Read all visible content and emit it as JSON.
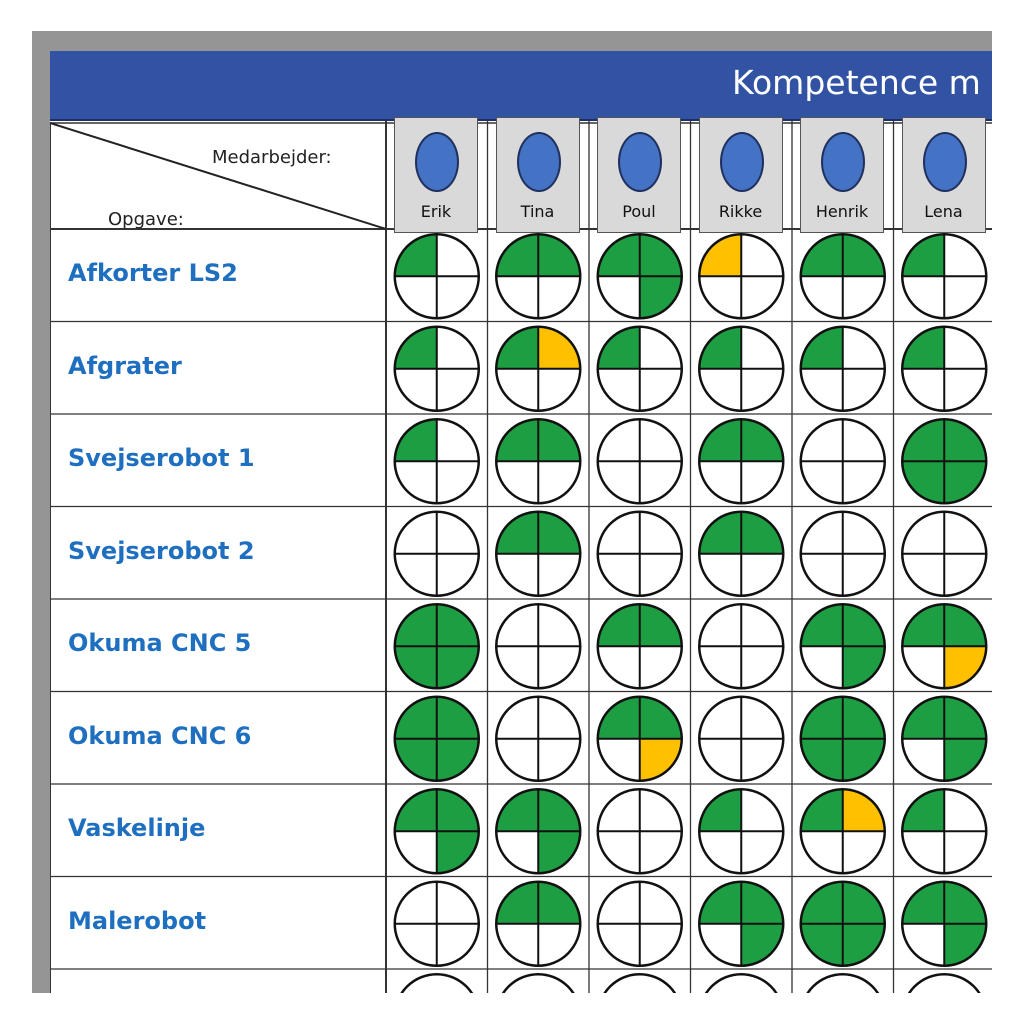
{
  "title": "Kompetence m",
  "header": {
    "employee_label": "Medarbejder:",
    "task_label": "Opgave:"
  },
  "employees": [
    "Erik",
    "Tina",
    "Poul",
    "Rikke",
    "Henrik",
    "Lena"
  ],
  "tasks": [
    "Afkorter LS2",
    "Afgrater",
    "Svejserobot 1",
    "Svejserobot 2",
    "Okuma CNC 5",
    "Okuma CNC 6",
    "Vaskelinje",
    "Malerobot"
  ],
  "legend_colors": {
    "filled": "#1d9e43",
    "in_training": "#ffc000",
    "empty": "#ffffff",
    "header_bar": "#3253a3",
    "task_text": "#1f6fc0",
    "avatar": "#4472c4"
  },
  "matrix": [
    [
      "GWWW",
      "GGWW",
      "GGGW",
      "YWWW",
      "GGWW",
      "GWWW"
    ],
    [
      "GWWW",
      "GYWW",
      "GWWW",
      "GWWW",
      "GWWW",
      "GWWW"
    ],
    [
      "GWWW",
      "GGWW",
      "WWWW",
      "GGWW",
      "WWWW",
      "GGGG"
    ],
    [
      "WWWW",
      "GGWW",
      "WWWW",
      "GGWW",
      "WWWW",
      "WWWW"
    ],
    [
      "GGGG",
      "WWWW",
      "GGWW",
      "WWWW",
      "GGGW",
      "GGYW"
    ],
    [
      "GGGG",
      "WWWW",
      "GGYW",
      "WWWW",
      "GGGG",
      "GGGW"
    ],
    [
      "GGGW",
      "GGGW",
      "WWWW",
      "GWWW",
      "GYWW",
      "GWWW"
    ],
    [
      "WWWW",
      "GGWW",
      "WWWW",
      "GGGW",
      "GGGG",
      "GGGW"
    ]
  ]
}
